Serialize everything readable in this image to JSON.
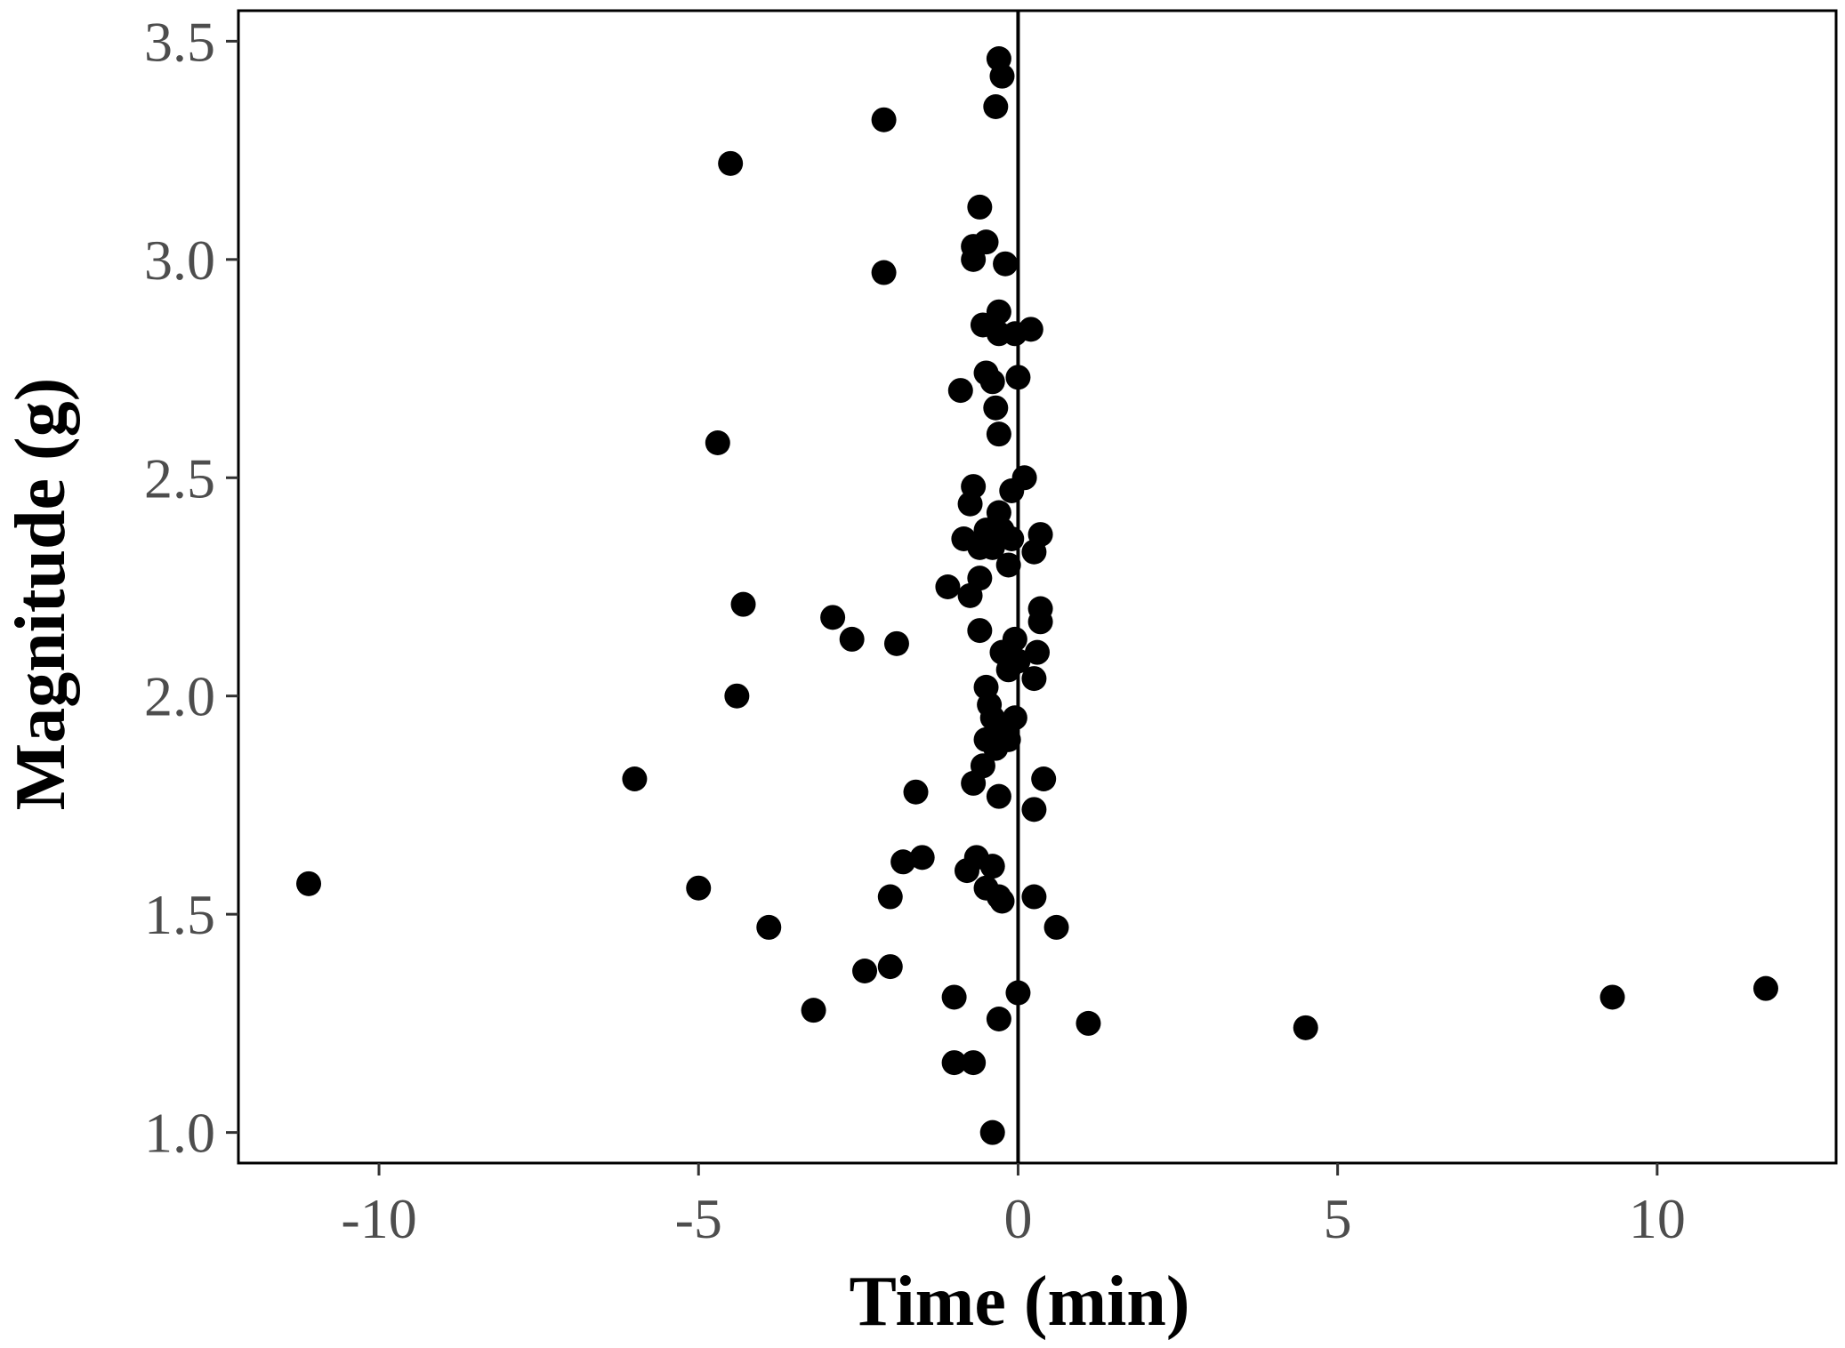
{
  "chart_data": {
    "type": "scatter",
    "title": "",
    "xlabel": "Time (min)",
    "ylabel": "Magnitude (g)",
    "xlim": [
      -12.2,
      12.8
    ],
    "ylim": [
      0.93,
      3.57
    ],
    "xticks": [
      -10,
      -5,
      0,
      5,
      10
    ],
    "xtick_labels": [
      "-10",
      "-5",
      "0",
      "5",
      "10"
    ],
    "yticks": [
      1.0,
      1.5,
      2.0,
      2.5,
      3.0,
      3.5
    ],
    "ytick_labels": [
      "1.0",
      "1.5",
      "2.0",
      "2.5",
      "3.0",
      "3.5"
    ],
    "reference_line_x": 0,
    "grid": false,
    "point_color": "#000000",
    "points": [
      {
        "x": -0.3,
        "y": 3.46
      },
      {
        "x": -0.25,
        "y": 3.42
      },
      {
        "x": -0.35,
        "y": 3.35
      },
      {
        "x": -2.1,
        "y": 3.32
      },
      {
        "x": -4.5,
        "y": 3.22
      },
      {
        "x": -0.6,
        "y": 3.12
      },
      {
        "x": -0.7,
        "y": 3.03
      },
      {
        "x": -0.5,
        "y": 3.04
      },
      {
        "x": -0.7,
        "y": 3.0
      },
      {
        "x": -0.2,
        "y": 2.99
      },
      {
        "x": -2.1,
        "y": 2.97
      },
      {
        "x": -0.3,
        "y": 2.88
      },
      {
        "x": -0.55,
        "y": 2.85
      },
      {
        "x": 0.2,
        "y": 2.84
      },
      {
        "x": -0.3,
        "y": 2.83
      },
      {
        "x": -0.05,
        "y": 2.83
      },
      {
        "x": -0.5,
        "y": 2.74
      },
      {
        "x": -0.4,
        "y": 2.72
      },
      {
        "x": 0.0,
        "y": 2.73
      },
      {
        "x": -0.9,
        "y": 2.7
      },
      {
        "x": -0.35,
        "y": 2.66
      },
      {
        "x": -0.3,
        "y": 2.6
      },
      {
        "x": -4.7,
        "y": 2.58
      },
      {
        "x": 0.1,
        "y": 2.5
      },
      {
        "x": -0.1,
        "y": 2.47
      },
      {
        "x": -0.7,
        "y": 2.48
      },
      {
        "x": -0.75,
        "y": 2.44
      },
      {
        "x": -0.3,
        "y": 2.42
      },
      {
        "x": -0.5,
        "y": 2.38
      },
      {
        "x": -0.25,
        "y": 2.38
      },
      {
        "x": 0.35,
        "y": 2.37
      },
      {
        "x": -0.85,
        "y": 2.36
      },
      {
        "x": -0.6,
        "y": 2.34
      },
      {
        "x": -0.4,
        "y": 2.34
      },
      {
        "x": -0.1,
        "y": 2.36
      },
      {
        "x": 0.25,
        "y": 2.33
      },
      {
        "x": -0.15,
        "y": 2.3
      },
      {
        "x": -0.6,
        "y": 2.27
      },
      {
        "x": -1.1,
        "y": 2.25
      },
      {
        "x": -0.75,
        "y": 2.23
      },
      {
        "x": -4.3,
        "y": 2.21
      },
      {
        "x": 0.35,
        "y": 2.2
      },
      {
        "x": -2.9,
        "y": 2.18
      },
      {
        "x": 0.35,
        "y": 2.17
      },
      {
        "x": -0.6,
        "y": 2.15
      },
      {
        "x": -0.05,
        "y": 2.13
      },
      {
        "x": -2.6,
        "y": 2.13
      },
      {
        "x": -1.9,
        "y": 2.12
      },
      {
        "x": 0.3,
        "y": 2.1
      },
      {
        "x": -0.25,
        "y": 2.1
      },
      {
        "x": 0.0,
        "y": 2.08
      },
      {
        "x": -0.15,
        "y": 2.06
      },
      {
        "x": 0.25,
        "y": 2.04
      },
      {
        "x": -0.5,
        "y": 2.02
      },
      {
        "x": -4.4,
        "y": 2.0
      },
      {
        "x": -0.45,
        "y": 1.98
      },
      {
        "x": -0.4,
        "y": 1.95
      },
      {
        "x": -0.05,
        "y": 1.95
      },
      {
        "x": -0.25,
        "y": 1.93
      },
      {
        "x": -0.5,
        "y": 1.9
      },
      {
        "x": -0.15,
        "y": 1.9
      },
      {
        "x": -0.35,
        "y": 1.88
      },
      {
        "x": -0.55,
        "y": 1.84
      },
      {
        "x": -6.0,
        "y": 1.81
      },
      {
        "x": -0.7,
        "y": 1.8
      },
      {
        "x": 0.4,
        "y": 1.81
      },
      {
        "x": -1.6,
        "y": 1.78
      },
      {
        "x": -0.3,
        "y": 1.77
      },
      {
        "x": 0.25,
        "y": 1.74
      },
      {
        "x": -1.5,
        "y": 1.63
      },
      {
        "x": -1.8,
        "y": 1.62
      },
      {
        "x": -0.65,
        "y": 1.63
      },
      {
        "x": -0.4,
        "y": 1.61
      },
      {
        "x": -0.8,
        "y": 1.6
      },
      {
        "x": -11.1,
        "y": 1.57
      },
      {
        "x": -5.0,
        "y": 1.56
      },
      {
        "x": -0.5,
        "y": 1.56
      },
      {
        "x": -0.3,
        "y": 1.54
      },
      {
        "x": -2.0,
        "y": 1.54
      },
      {
        "x": 0.25,
        "y": 1.54
      },
      {
        "x": -0.25,
        "y": 1.53
      },
      {
        "x": -3.9,
        "y": 1.47
      },
      {
        "x": 0.6,
        "y": 1.47
      },
      {
        "x": -2.0,
        "y": 1.38
      },
      {
        "x": -2.4,
        "y": 1.37
      },
      {
        "x": 11.7,
        "y": 1.33
      },
      {
        "x": 0.0,
        "y": 1.32
      },
      {
        "x": -1.0,
        "y": 1.31
      },
      {
        "x": 9.3,
        "y": 1.31
      },
      {
        "x": -3.2,
        "y": 1.28
      },
      {
        "x": -0.3,
        "y": 1.26
      },
      {
        "x": 1.1,
        "y": 1.25
      },
      {
        "x": 4.5,
        "y": 1.24
      },
      {
        "x": -0.7,
        "y": 1.16
      },
      {
        "x": -1.0,
        "y": 1.16
      },
      {
        "x": -0.4,
        "y": 1.0
      }
    ]
  }
}
